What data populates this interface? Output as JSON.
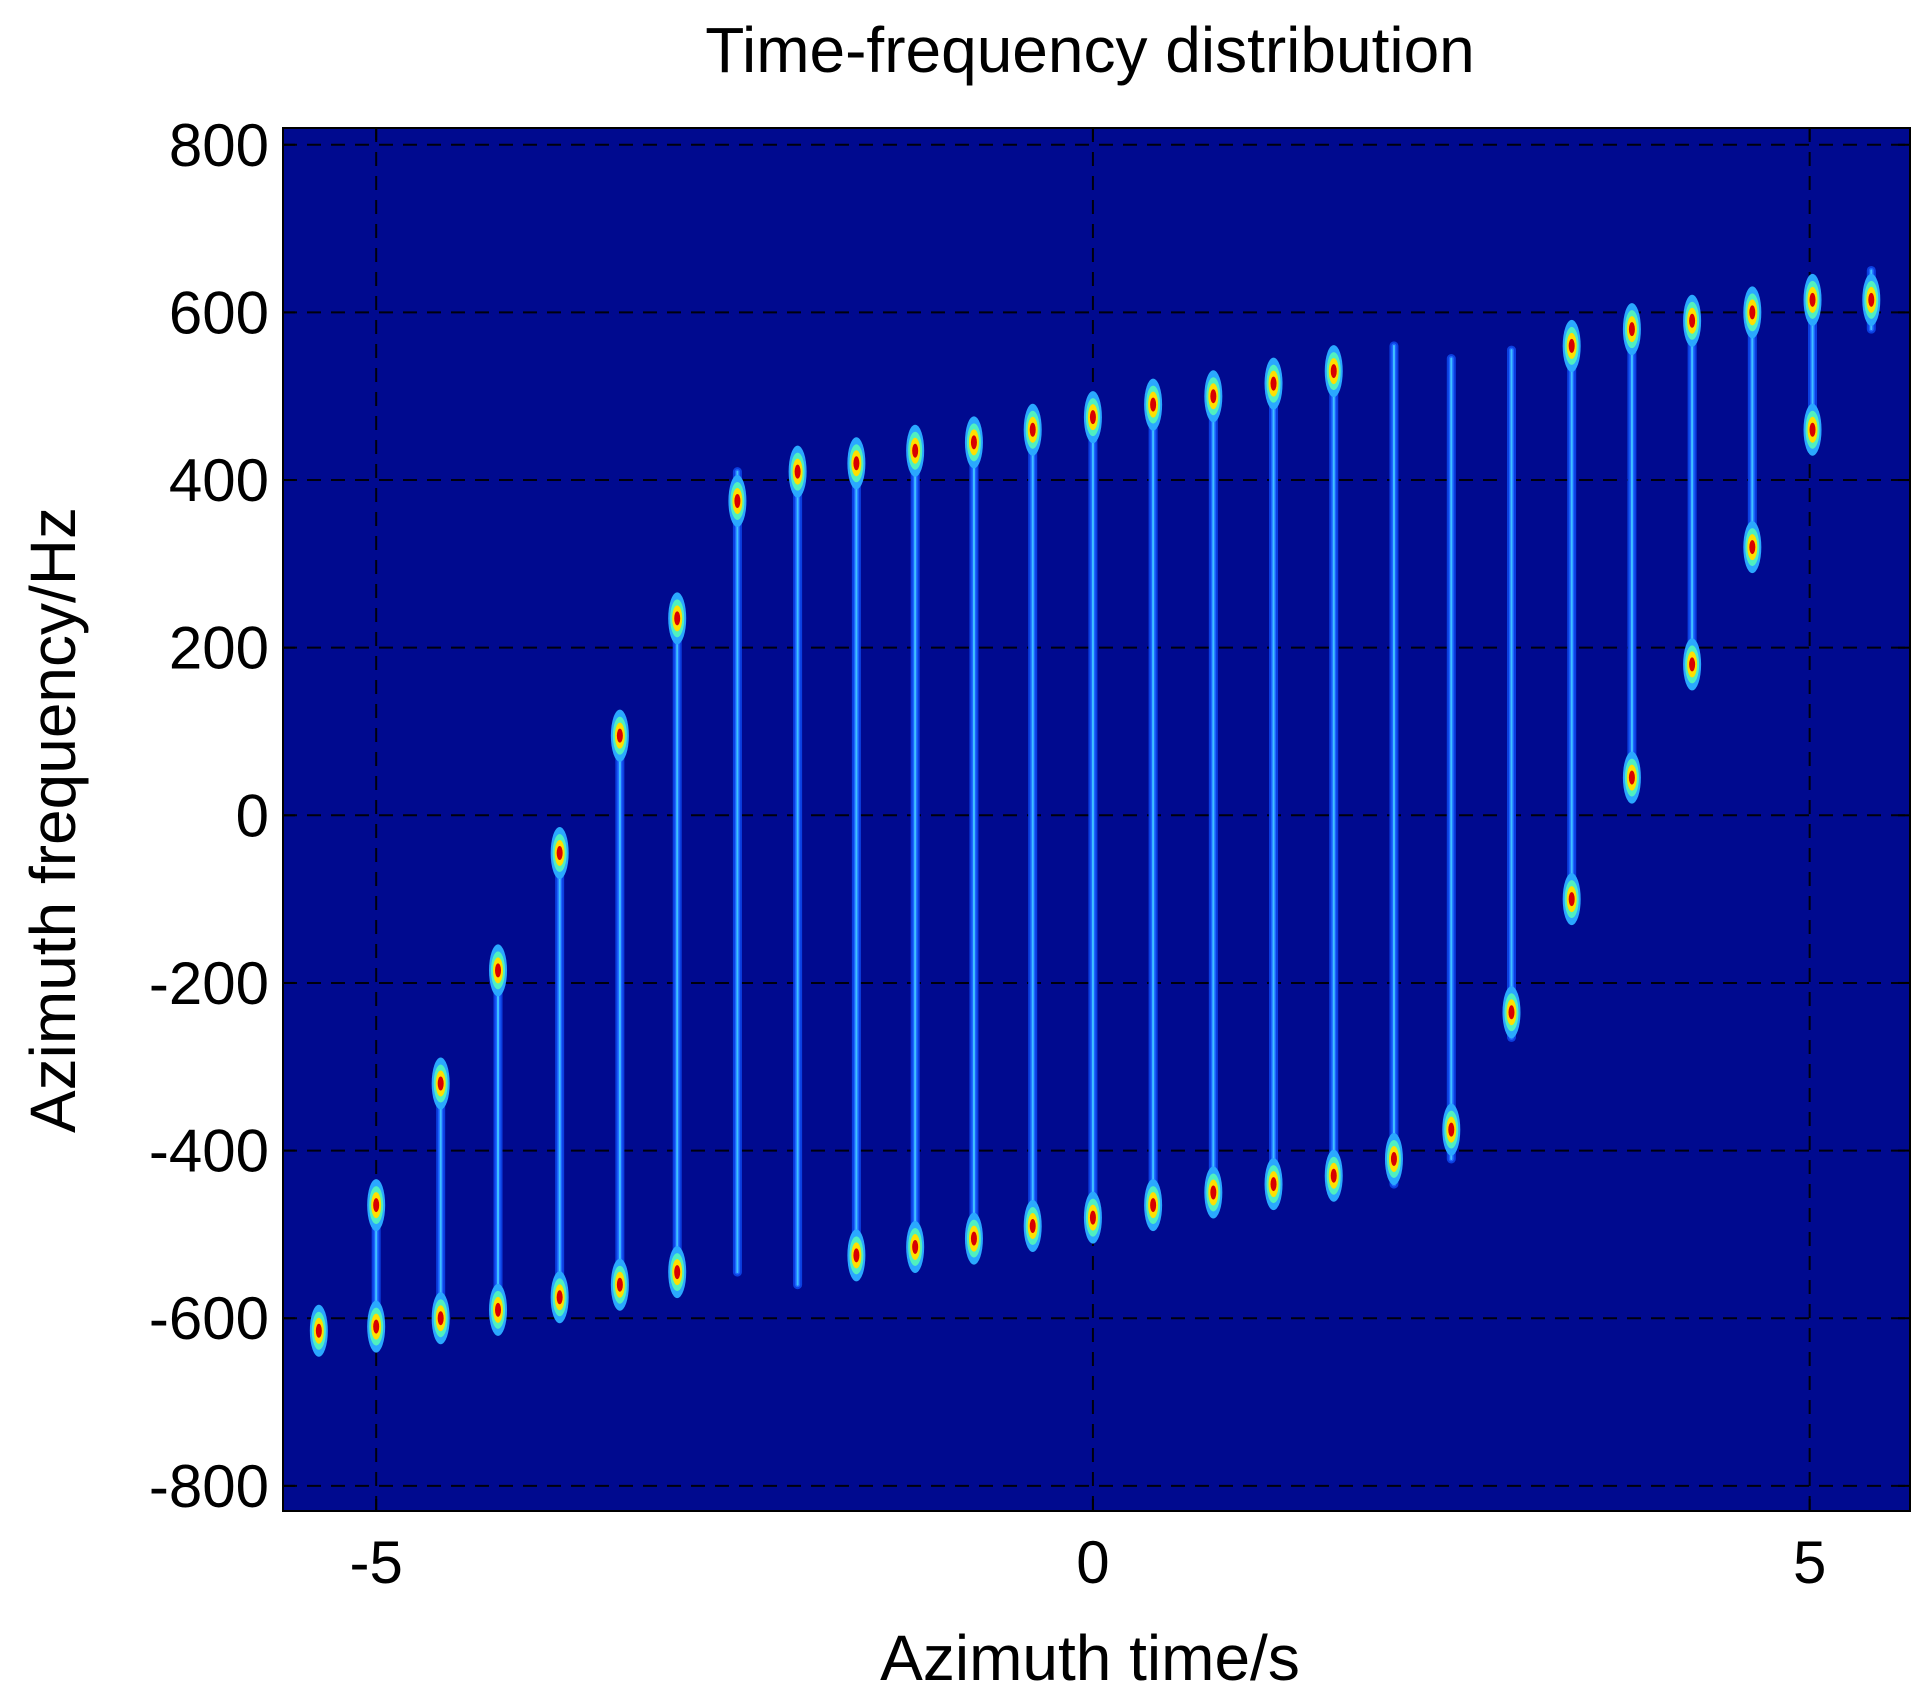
{
  "chart_data": {
    "type": "heatmap",
    "title": "Time-frequency distribution",
    "xlabel": "Azimuth time/s",
    "ylabel": "Azimuth frequency/Hz",
    "xlim": [
      -5.65,
      5.7
    ],
    "ylim": [
      -830,
      820
    ],
    "xticks": [
      -5,
      0,
      5
    ],
    "yticks": [
      800,
      600,
      400,
      200,
      0,
      -200,
      -400,
      -600,
      -800
    ],
    "xtick_labels": [
      "-5",
      "0",
      "5"
    ],
    "ytick_labels": [
      "800",
      "600",
      "400",
      "200",
      "0",
      "-200",
      "-400",
      "-600",
      "-800"
    ],
    "grid": true,
    "colormap": "jet",
    "background_color": "#000a8f",
    "line_color": "#1e66ff",
    "stripes": [
      {
        "t": -5.4,
        "f_top": -590,
        "f_bottom": -640,
        "peaks": [
          -615
        ]
      },
      {
        "t": -5.0,
        "f_top": -460,
        "f_bottom": -620,
        "peaks": [
          -465,
          -610
        ]
      },
      {
        "t": -4.55,
        "f_top": -300,
        "f_bottom": -605,
        "peaks": [
          -320,
          -600
        ]
      },
      {
        "t": -4.15,
        "f_top": -170,
        "f_bottom": -595,
        "peaks": [
          -185,
          -590
        ]
      },
      {
        "t": -3.72,
        "f_top": -25,
        "f_bottom": -580,
        "peaks": [
          -45,
          -575
        ]
      },
      {
        "t": -3.3,
        "f_top": 120,
        "f_bottom": -565,
        "peaks": [
          95,
          -560
        ]
      },
      {
        "t": -2.9,
        "f_top": 260,
        "f_bottom": -550,
        "peaks": [
          235,
          -545
        ]
      },
      {
        "t": -2.48,
        "f_top": 410,
        "f_bottom": -545,
        "peaks": [
          375
        ]
      },
      {
        "t": -2.06,
        "f_top": 435,
        "f_bottom": -560,
        "peaks": [
          410
        ]
      },
      {
        "t": -1.65,
        "f_top": 445,
        "f_bottom": -530,
        "peaks": [
          420,
          -525
        ]
      },
      {
        "t": -1.24,
        "f_top": 455,
        "f_bottom": -520,
        "peaks": [
          435,
          -515
        ]
      },
      {
        "t": -0.83,
        "f_top": 465,
        "f_bottom": -510,
        "peaks": [
          445,
          -505
        ]
      },
      {
        "t": -0.42,
        "f_top": 475,
        "f_bottom": -500,
        "peaks": [
          460,
          -490
        ]
      },
      {
        "t": 0.0,
        "f_top": 490,
        "f_bottom": -490,
        "peaks": [
          475,
          -480
        ]
      },
      {
        "t": 0.42,
        "f_top": 500,
        "f_bottom": -480,
        "peaks": [
          490,
          -465
        ]
      },
      {
        "t": 0.84,
        "f_top": 510,
        "f_bottom": -470,
        "peaks": [
          500,
          -450
        ]
      },
      {
        "t": 1.26,
        "f_top": 525,
        "f_bottom": -460,
        "peaks": [
          515,
          -440
        ]
      },
      {
        "t": 1.68,
        "f_top": 535,
        "f_bottom": -450,
        "peaks": [
          530,
          -430
        ]
      },
      {
        "t": 2.1,
        "f_top": 560,
        "f_bottom": -440,
        "peaks": [
          -410
        ]
      },
      {
        "t": 2.5,
        "f_top": 545,
        "f_bottom": -410,
        "peaks": [
          -375
        ]
      },
      {
        "t": 2.92,
        "f_top": 555,
        "f_bottom": -265,
        "peaks": [
          -235
        ]
      },
      {
        "t": 3.34,
        "f_top": 565,
        "f_bottom": -125,
        "peaks": [
          -100,
          560
        ]
      },
      {
        "t": 3.76,
        "f_top": 585,
        "f_bottom": 20,
        "peaks": [
          45,
          580
        ]
      },
      {
        "t": 4.18,
        "f_top": 600,
        "f_bottom": 160,
        "peaks": [
          180,
          590
        ]
      },
      {
        "t": 4.6,
        "f_top": 615,
        "f_bottom": 295,
        "peaks": [
          320,
          600
        ]
      },
      {
        "t": 5.02,
        "f_top": 630,
        "f_bottom": 440,
        "peaks": [
          460,
          615
        ]
      },
      {
        "t": 5.43,
        "f_top": 650,
        "f_bottom": 580,
        "peaks": [
          615
        ]
      }
    ]
  }
}
